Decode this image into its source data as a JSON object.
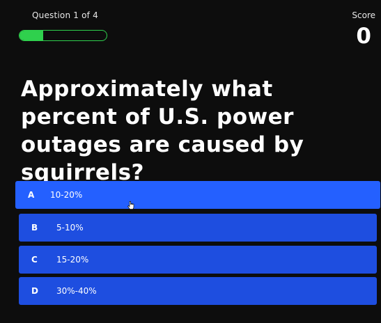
{
  "header": {
    "progress_text": "Question 1 of 4",
    "progress_fraction": 0.27,
    "score_label": "Score",
    "score_value": "0"
  },
  "question": {
    "text": "Approximately what percent of U.S. power outages are caused by squirrels?"
  },
  "answers": [
    {
      "letter": "A",
      "text": "10-20%"
    },
    {
      "letter": "B",
      "text": "5-10%"
    },
    {
      "letter": "C",
      "text": "15-20%"
    },
    {
      "letter": "D",
      "text": "30%-40%"
    }
  ],
  "colors": {
    "background": "#0d0d0d",
    "progress_green": "#2fd04d",
    "answer_blue": "#1e4ee0",
    "answer_hover_blue": "#2460ff"
  },
  "icons": {
    "cursor": "hand-pointer-icon"
  }
}
